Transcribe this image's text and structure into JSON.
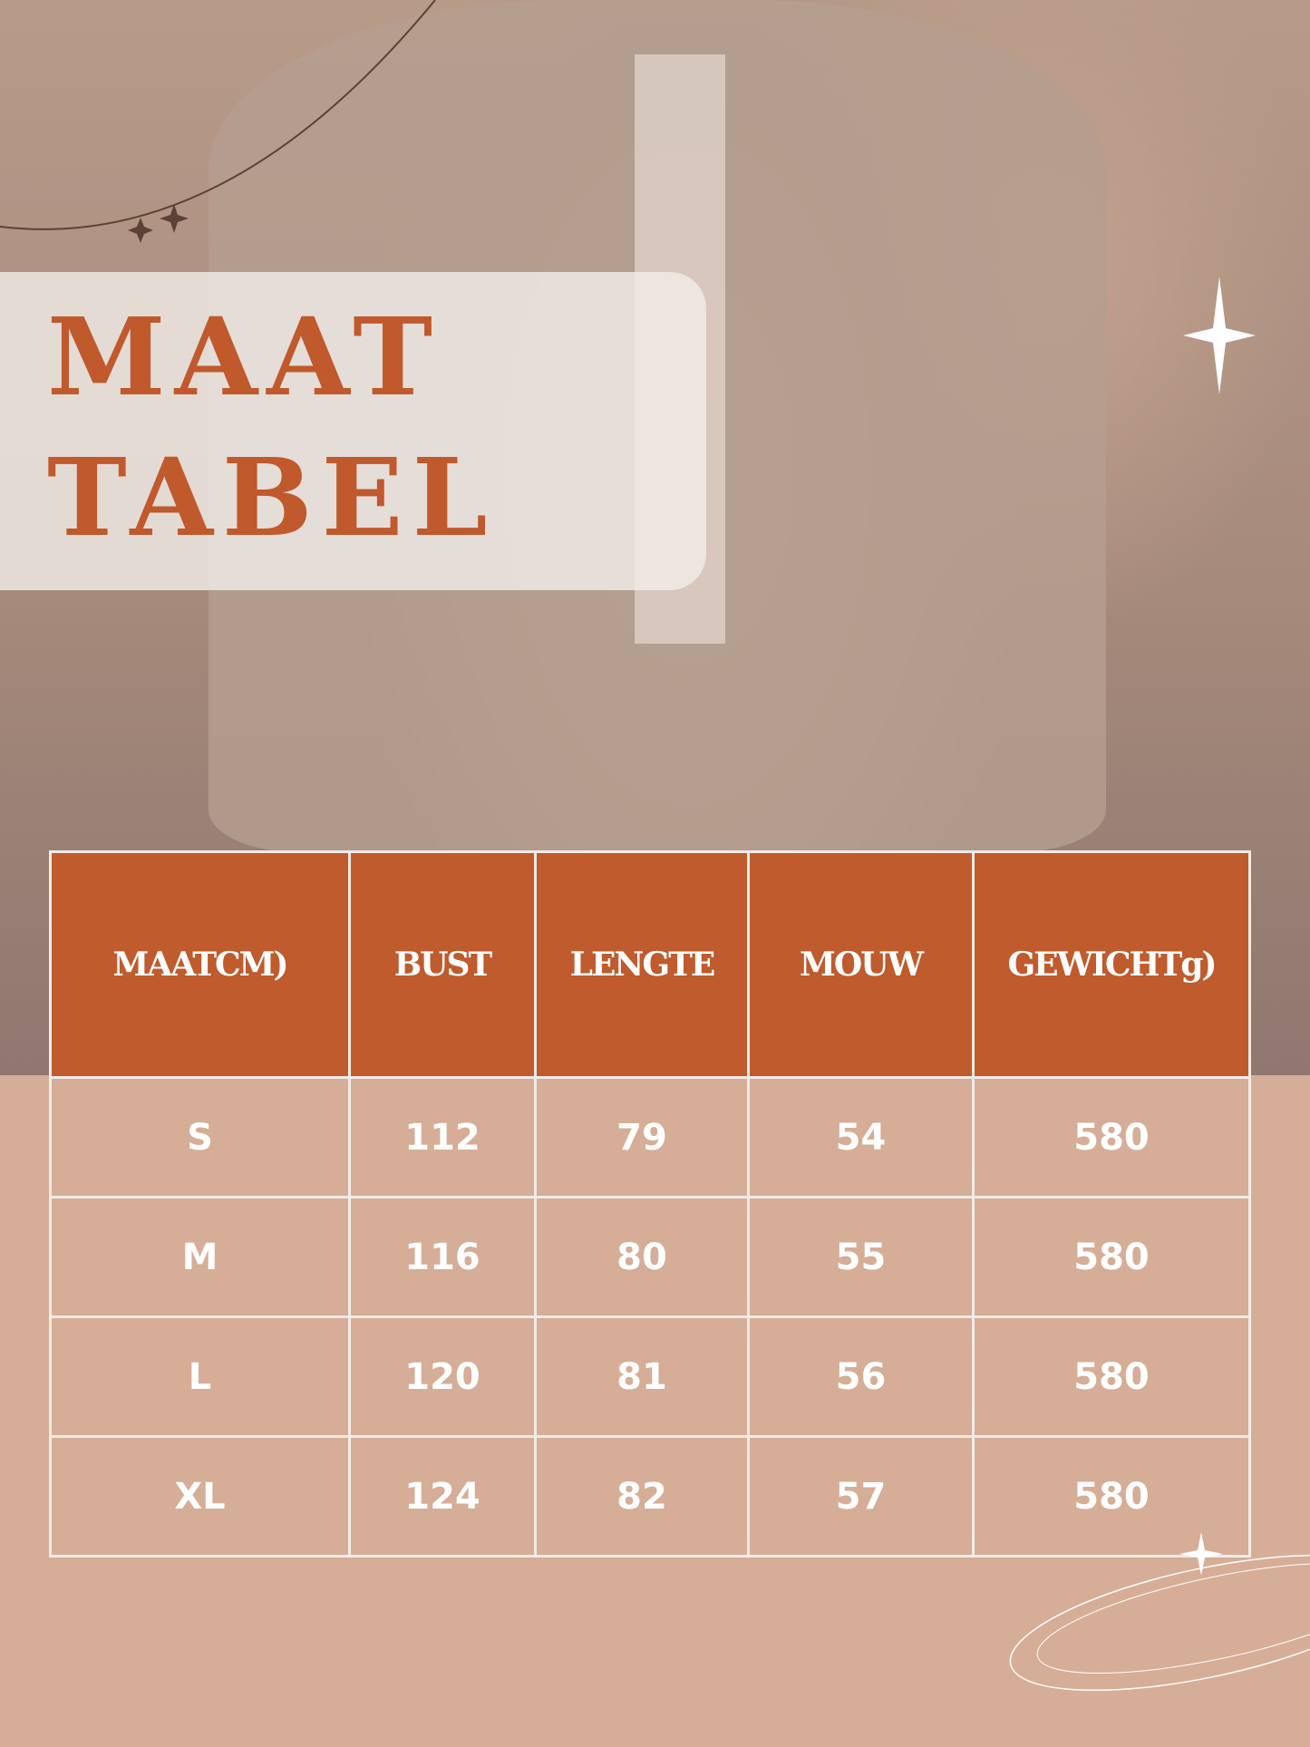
{
  "title": {
    "line1": "MAAT",
    "line2": "TABEL"
  },
  "colors": {
    "accent": "#bf5b2c",
    "background": "#d6ad96"
  },
  "table": {
    "headers": [
      "MAATCM)",
      "BUST",
      "LENGTE",
      "MOUW",
      "GEWICHTg)"
    ],
    "rows": [
      [
        "S",
        "112",
        "79",
        "54",
        "580"
      ],
      [
        "M",
        "116",
        "80",
        "55",
        "580"
      ],
      [
        "L",
        "120",
        "81",
        "56",
        "580"
      ],
      [
        "XL",
        "124",
        "82",
        "57",
        "580"
      ]
    ]
  }
}
